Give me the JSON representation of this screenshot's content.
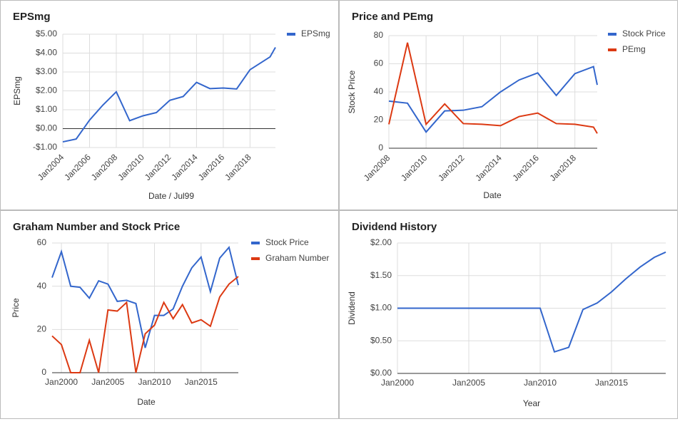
{
  "chart_data": [
    {
      "type": "line",
      "title": "EPSmg",
      "x_label": "Date / Jul99",
      "y_label": "EPSmg",
      "x": [
        2004,
        2005,
        2006,
        2007,
        2008,
        2009,
        2010,
        2011,
        2012,
        2013,
        2014,
        2015,
        2016,
        2017,
        2018,
        2019.5,
        2019.9
      ],
      "series": [
        {
          "name": "EPSmg",
          "color": "#3366cc",
          "values": [
            -0.7,
            -0.55,
            0.45,
            1.25,
            1.95,
            0.42,
            0.68,
            0.85,
            1.5,
            1.7,
            2.45,
            2.12,
            2.15,
            2.1,
            3.12,
            3.8,
            4.3
          ]
        }
      ],
      "xlim": [
        2004,
        2019.9
      ],
      "xticks": [
        {
          "value": 2004,
          "label": "Jan2004"
        },
        {
          "value": 2006,
          "label": "Jan2006"
        },
        {
          "value": 2008,
          "label": "Jan2008"
        },
        {
          "value": 2010,
          "label": "Jan2010"
        },
        {
          "value": 2012,
          "label": "Jan2012"
        },
        {
          "value": 2014,
          "label": "Jan2014"
        },
        {
          "value": 2016,
          "label": "Jan2016"
        },
        {
          "value": 2018,
          "label": "Jan2018"
        }
      ],
      "ylim": [
        -1,
        5
      ],
      "yticks": [
        {
          "value": -1,
          "label": "-$1.00"
        },
        {
          "value": 0,
          "label": "$0.00"
        },
        {
          "value": 1,
          "label": "$1.00"
        },
        {
          "value": 2,
          "label": "$2.00"
        },
        {
          "value": 3,
          "label": "$3.00"
        },
        {
          "value": 4,
          "label": "$4.00"
        },
        {
          "value": 5,
          "label": "$5.00"
        }
      ],
      "grid": true,
      "legend": "right",
      "rotate_x_labels": true
    },
    {
      "type": "line",
      "title": "Price and PEmg",
      "x_label": "Date",
      "y_label": "Stock Price",
      "x": [
        2008,
        2009,
        2010,
        2011,
        2012,
        2013,
        2014,
        2015,
        2016,
        2017,
        2018,
        2019,
        2019.2
      ],
      "series": [
        {
          "name": "Stock Price",
          "color": "#3366cc",
          "values": [
            33.5,
            32,
            11.5,
            26.5,
            27,
            29.5,
            40,
            48.5,
            53.5,
            37.5,
            53,
            58,
            45
          ]
        },
        {
          "name": "PEmg",
          "color": "#dc3912",
          "values": [
            17,
            75,
            17,
            31.5,
            17.5,
            17,
            16,
            22.5,
            25,
            17.5,
            17,
            15,
            10.5
          ]
        }
      ],
      "xlim": [
        2008,
        2019.2
      ],
      "xticks": [
        {
          "value": 2008,
          "label": "Jan2008"
        },
        {
          "value": 2010,
          "label": "Jan2010"
        },
        {
          "value": 2012,
          "label": "Jan2012"
        },
        {
          "value": 2014,
          "label": "Jan2014"
        },
        {
          "value": 2016,
          "label": "Jan2016"
        },
        {
          "value": 2018,
          "label": "Jan2018"
        }
      ],
      "ylim": [
        0,
        80
      ],
      "yticks": [
        0,
        20,
        40,
        60,
        80
      ],
      "grid": true,
      "legend": "right",
      "rotate_x_labels": true
    },
    {
      "type": "line",
      "title": "Graham Number and Stock Price",
      "x_label": "Date",
      "y_label": "Price",
      "x": [
        1999,
        2000,
        2001,
        2002,
        2003,
        2004,
        2005,
        2006,
        2007,
        2008,
        2009,
        2010,
        2011,
        2012,
        2013,
        2014,
        2015,
        2016,
        2017,
        2018,
        2019
      ],
      "series": [
        {
          "name": "Stock Price",
          "color": "#3366cc",
          "values": [
            44,
            56,
            40,
            39.5,
            34.5,
            42.5,
            41,
            33,
            33.5,
            32,
            11.5,
            26.5,
            26.5,
            29.5,
            40,
            48.5,
            53.5,
            37.5,
            53,
            58,
            40.5
          ]
        },
        {
          "name": "Graham Number",
          "color": "#dc3912",
          "values": [
            17,
            13,
            0,
            0,
            15,
            0,
            29,
            28.5,
            32.5,
            0,
            18,
            22,
            32.5,
            25,
            31.5,
            23,
            24.5,
            21.5,
            35,
            41,
            44.5
          ]
        }
      ],
      "xlim": [
        1999,
        2019
      ],
      "xticks": [
        {
          "value": 2000,
          "label": "Jan2000"
        },
        {
          "value": 2005,
          "label": "Jan2005"
        },
        {
          "value": 2010,
          "label": "Jan2010"
        },
        {
          "value": 2015,
          "label": "Jan2015"
        }
      ],
      "ylim": [
        0,
        60
      ],
      "yticks": [
        0,
        20,
        40,
        60
      ],
      "grid": true,
      "legend": "right",
      "rotate_x_labels": false
    },
    {
      "type": "line",
      "title": "Dividend History",
      "x_label": "Year",
      "y_label": "Dividend",
      "x": [
        2000,
        2010,
        2011,
        2012,
        2013,
        2014,
        2015,
        2016,
        2017,
        2018,
        2018.8
      ],
      "series": [
        {
          "color": "#3366cc",
          "values": [
            1,
            1,
            0.33,
            0.4,
            0.98,
            1.08,
            1.25,
            1.45,
            1.63,
            1.78,
            1.86
          ]
        }
      ],
      "xlim": [
        2000,
        2018.8
      ],
      "xticks": [
        {
          "value": 2000,
          "label": "Jan2000"
        },
        {
          "value": 2005,
          "label": "Jan2005"
        },
        {
          "value": 2010,
          "label": "Jan2010"
        },
        {
          "value": 2015,
          "label": "Jan2015"
        }
      ],
      "ylim": [
        0,
        2
      ],
      "yticks": [
        {
          "value": 0,
          "label": "$0.00"
        },
        {
          "value": 0.5,
          "label": "$0.50"
        },
        {
          "value": 1,
          "label": "$1.00"
        },
        {
          "value": 1.5,
          "label": "$1.50"
        },
        {
          "value": 2,
          "label": "$2.00"
        }
      ],
      "grid": true,
      "rotate_x_labels": false
    }
  ]
}
